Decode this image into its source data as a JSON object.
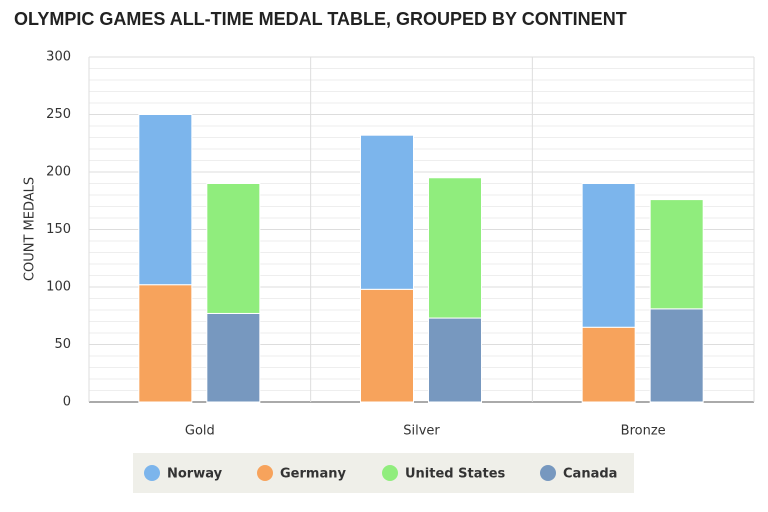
{
  "chart_data": {
    "type": "bar",
    "title": "OLYMPIC GAMES ALL-TIME MEDAL TABLE, GROUPED BY CONTINENT",
    "y_label": "COUNT MEDALS",
    "categories": [
      "Gold",
      "Silver",
      "Bronze"
    ],
    "series": [
      {
        "name": "Norway",
        "color": "#7cb5ec",
        "values": [
          148,
          134,
          125
        ]
      },
      {
        "name": "Germany",
        "color": "#f7a35c",
        "values": [
          102,
          98,
          65
        ]
      },
      {
        "name": "United States",
        "color": "#90ed7d",
        "values": [
          113,
          122,
          95
        ]
      },
      {
        "name": "Canada",
        "color": "#7798bf",
        "values": [
          77,
          73,
          81
        ]
      }
    ],
    "ylim": [
      0,
      300
    ],
    "yticks": [
      0,
      50,
      100,
      150,
      200,
      250,
      300
    ],
    "grid": true
  }
}
